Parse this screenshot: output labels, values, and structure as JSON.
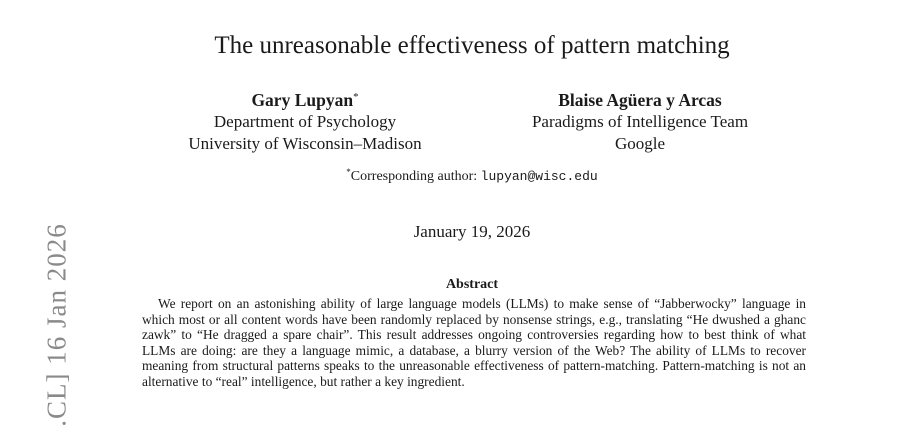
{
  "arxiv_stamp": ".CL]  16 Jan 2026",
  "title": "The unreasonable effectiveness of pattern matching",
  "authors": [
    {
      "name": "Gary Lupyan",
      "marker": "*",
      "affiliation_line1": "Department of Psychology",
      "affiliation_line2": "University of Wisconsin–Madison"
    },
    {
      "name": "Blaise Agüera y Arcas",
      "marker": "",
      "affiliation_line1": "Paradigms of Intelligence Team",
      "affiliation_line2": "Google"
    }
  ],
  "corresponding": {
    "marker": "*",
    "label": "Corresponding author: ",
    "email": "lupyan@wisc.edu"
  },
  "date": "January 19, 2026",
  "abstract": {
    "heading": "Abstract",
    "text": "We report on an astonishing ability of large language models (LLMs) to make sense of “Jabberwocky” language in which most or all content words have been randomly replaced by nonsense strings, e.g., translating “He dwushed a ghanc zawk” to “He dragged a spare chair”.  This result addresses ongoing controversies regarding how to best think of what LLMs are doing: are they a language mimic, a database, a blurry version of the Web? The ability of LLMs to recover meaning from structural patterns speaks to the unreasonable effectiveness of pattern-matching. Pattern-matching is not an alternative to “real” intelligence, but rather a key ingredient."
  }
}
